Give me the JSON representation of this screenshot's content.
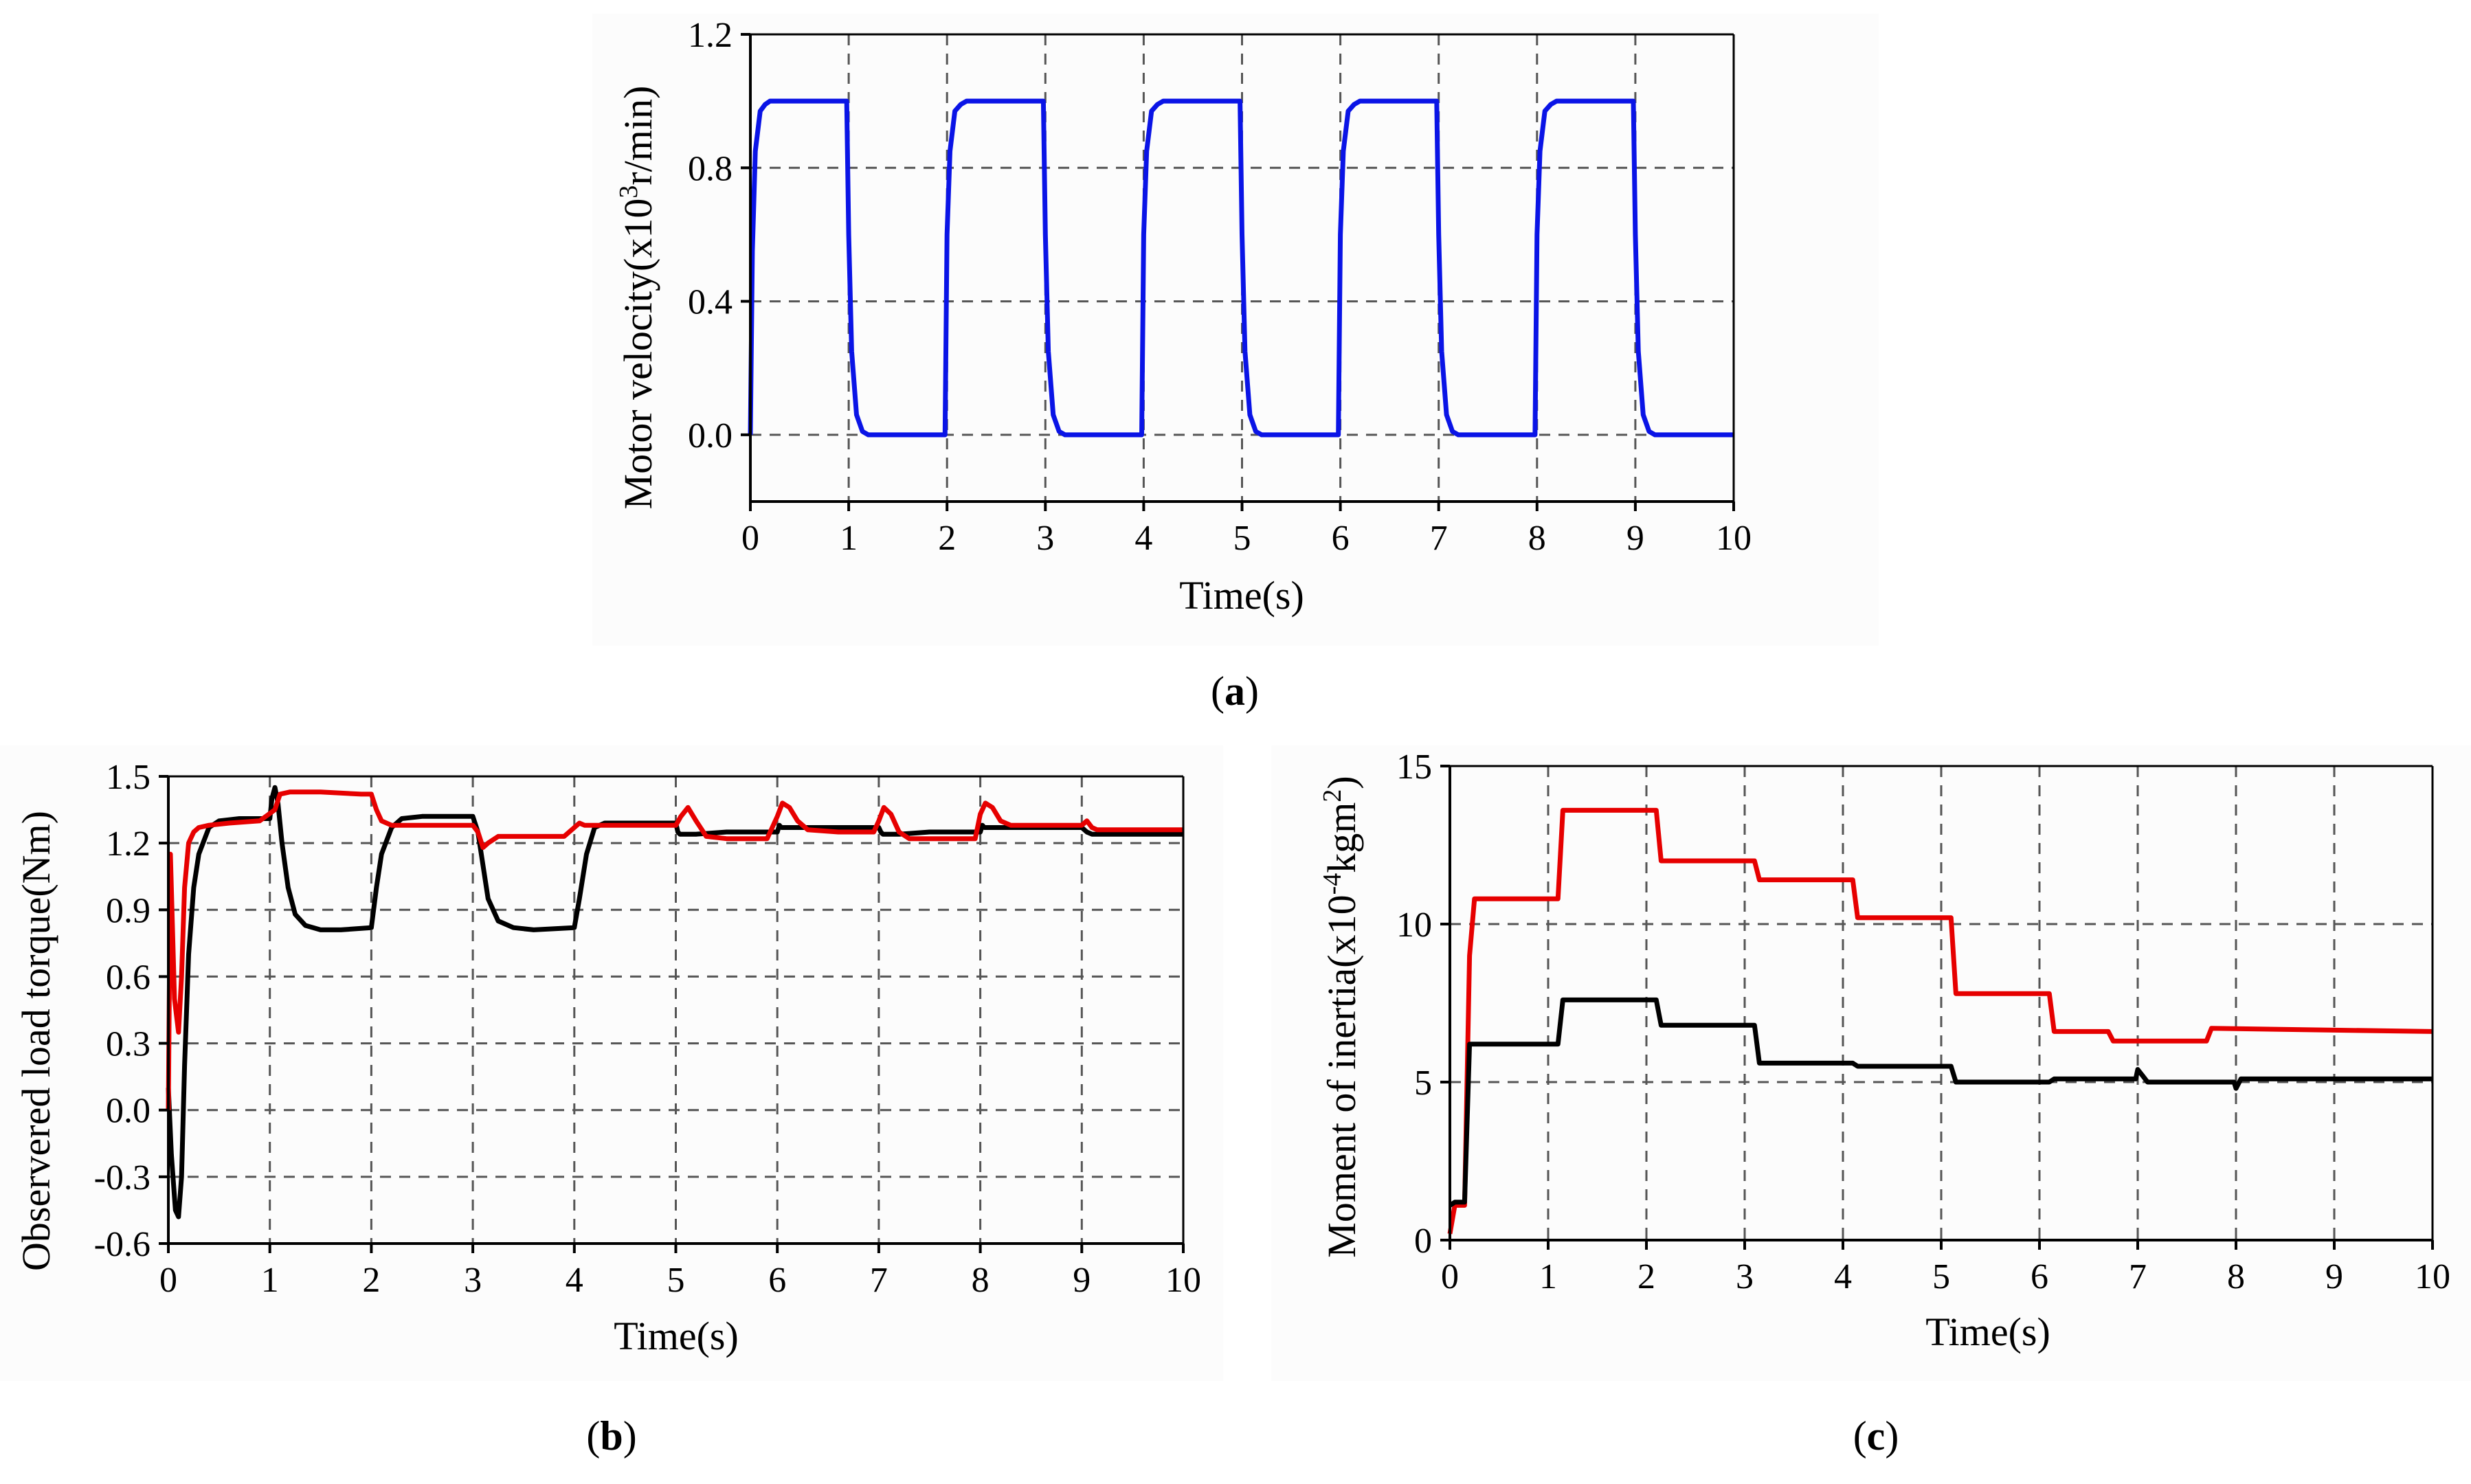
{
  "figure_captions": {
    "a": "a",
    "b": "b",
    "c": "c"
  },
  "chart_data": [
    {
      "id": "a",
      "type": "line",
      "title": "",
      "xlabel": "Time(s)",
      "ylabel_prefix": "Motor velocity(x10",
      "ylabel_sup": "3",
      "ylabel_suffix": "r/min)",
      "xlim": [
        0,
        10
      ],
      "ylim": [
        -0.2,
        1.2
      ],
      "xticks": [
        0,
        1,
        2,
        3,
        4,
        5,
        6,
        7,
        8,
        9,
        10
      ],
      "xtick_labels": [
        "0",
        "1",
        "2",
        "3",
        "4",
        "5",
        "6",
        "7",
        "8",
        "9",
        "10"
      ],
      "yticks": [
        0.0,
        0.4,
        0.8,
        1.2
      ],
      "ytick_labels": [
        "0.0",
        "0.4",
        "0.8",
        "1.2"
      ],
      "grid": true,
      "series": [
        {
          "name": "velocity",
          "color": "#0a14e6",
          "x": [
            0,
            0.02,
            0.05,
            0.1,
            0.15,
            0.2,
            0.98,
            1.0,
            1.03,
            1.08,
            1.14,
            1.2,
            1.98,
            2.0,
            2.03,
            2.08,
            2.14,
            2.2,
            2.98,
            3.0,
            3.03,
            3.08,
            3.14,
            3.2,
            3.98,
            4.0,
            4.03,
            4.08,
            4.14,
            4.2,
            4.98,
            5.0,
            5.03,
            5.08,
            5.14,
            5.2,
            5.98,
            6.0,
            6.03,
            6.08,
            6.14,
            6.2,
            6.98,
            7.0,
            7.03,
            7.08,
            7.14,
            7.2,
            7.98,
            8.0,
            8.03,
            8.08,
            8.14,
            8.2,
            8.98,
            9.0,
            9.03,
            9.08,
            9.14,
            9.2,
            10.0
          ],
          "y": [
            0,
            0.55,
            0.85,
            0.97,
            0.99,
            1.0,
            1.0,
            0.6,
            0.25,
            0.06,
            0.01,
            0,
            0,
            0.6,
            0.85,
            0.97,
            0.99,
            1.0,
            1.0,
            0.6,
            0.25,
            0.06,
            0.01,
            0,
            0,
            0.6,
            0.85,
            0.97,
            0.99,
            1.0,
            1.0,
            0.6,
            0.25,
            0.06,
            0.01,
            0,
            0,
            0.6,
            0.85,
            0.97,
            0.99,
            1.0,
            1.0,
            0.6,
            0.25,
            0.06,
            0.01,
            0,
            0,
            0.6,
            0.85,
            0.97,
            0.99,
            1.0,
            1.0,
            0.6,
            0.25,
            0.06,
            0.01,
            0,
            0
          ]
        }
      ]
    },
    {
      "id": "b",
      "type": "line",
      "title": "",
      "xlabel": "Time(s)",
      "ylabel": "Observered load torque(Nm)",
      "xlim": [
        0,
        10
      ],
      "ylim": [
        -0.6,
        1.5
      ],
      "xticks": [
        0,
        1,
        2,
        3,
        4,
        5,
        6,
        7,
        8,
        9,
        10
      ],
      "xtick_labels": [
        "0",
        "1",
        "2",
        "3",
        "4",
        "5",
        "6",
        "7",
        "8",
        "9",
        "10"
      ],
      "yticks": [
        -0.6,
        -0.3,
        0.0,
        0.3,
        0.6,
        0.9,
        1.2,
        1.5
      ],
      "ytick_labels": [
        "-0.6",
        "-0.3",
        "0.0",
        "0.3",
        "0.6",
        "0.9",
        "1.2",
        "1.5"
      ],
      "grid": true,
      "series": [
        {
          "name": "black",
          "color": "#000000",
          "x": [
            0,
            0.03,
            0.07,
            0.1,
            0.13,
            0.16,
            0.2,
            0.25,
            0.3,
            0.4,
            0.5,
            0.7,
            1.0,
            1.02,
            1.05,
            1.08,
            1.12,
            1.18,
            1.25,
            1.35,
            1.5,
            1.7,
            2.0,
            2.05,
            2.1,
            2.2,
            2.3,
            2.5,
            3.0,
            3.05,
            3.1,
            3.15,
            3.25,
            3.4,
            3.6,
            4.0,
            4.05,
            4.12,
            4.2,
            4.3,
            5.0,
            5.02,
            5.04,
            5.2,
            5.5,
            6.0,
            6.02,
            6.04,
            6.2,
            6.5,
            7.0,
            7.02,
            7.04,
            7.2,
            7.5,
            8.0,
            8.02,
            8.04,
            8.2,
            8.5,
            9.0,
            9.05,
            9.1,
            10.0
          ],
          "y": [
            0.1,
            -0.2,
            -0.45,
            -0.48,
            -0.3,
            0.2,
            0.7,
            1.0,
            1.15,
            1.27,
            1.3,
            1.31,
            1.31,
            1.4,
            1.45,
            1.38,
            1.2,
            1.0,
            0.88,
            0.83,
            0.81,
            0.81,
            0.82,
            1.0,
            1.15,
            1.27,
            1.31,
            1.32,
            1.32,
            1.25,
            1.1,
            0.95,
            0.85,
            0.82,
            0.81,
            0.82,
            0.95,
            1.15,
            1.27,
            1.29,
            1.29,
            1.25,
            1.24,
            1.24,
            1.25,
            1.25,
            1.28,
            1.27,
            1.27,
            1.27,
            1.27,
            1.25,
            1.24,
            1.24,
            1.25,
            1.25,
            1.28,
            1.27,
            1.27,
            1.27,
            1.27,
            1.25,
            1.24,
            1.24
          ]
        },
        {
          "name": "red",
          "color": "#e60000",
          "x": [
            0,
            0.02,
            0.06,
            0.1,
            0.13,
            0.16,
            0.2,
            0.25,
            0.3,
            0.4,
            0.6,
            0.9,
            1.05,
            1.1,
            1.2,
            1.5,
            1.9,
            2.0,
            2.05,
            2.1,
            2.2,
            2.5,
            3.0,
            3.05,
            3.1,
            3.15,
            3.25,
            3.5,
            3.9,
            4.0,
            4.05,
            4.1,
            4.5,
            5.0,
            5.05,
            5.12,
            5.2,
            5.3,
            5.5,
            5.9,
            6.0,
            6.05,
            6.12,
            6.2,
            6.3,
            6.6,
            6.95,
            7.0,
            7.05,
            7.12,
            7.2,
            7.3,
            7.6,
            7.95,
            8.0,
            8.05,
            8.12,
            8.2,
            8.3,
            8.6,
            9.0,
            9.05,
            9.1,
            9.15,
            10.0
          ],
          "y": [
            0.0,
            1.15,
            0.5,
            0.35,
            0.6,
            1.0,
            1.2,
            1.25,
            1.27,
            1.28,
            1.29,
            1.3,
            1.35,
            1.42,
            1.43,
            1.43,
            1.42,
            1.42,
            1.35,
            1.3,
            1.28,
            1.28,
            1.28,
            1.25,
            1.18,
            1.2,
            1.23,
            1.23,
            1.23,
            1.27,
            1.29,
            1.28,
            1.28,
            1.28,
            1.32,
            1.36,
            1.3,
            1.23,
            1.22,
            1.22,
            1.32,
            1.38,
            1.36,
            1.3,
            1.26,
            1.25,
            1.25,
            1.3,
            1.36,
            1.33,
            1.25,
            1.22,
            1.22,
            1.22,
            1.33,
            1.38,
            1.36,
            1.3,
            1.28,
            1.28,
            1.28,
            1.3,
            1.27,
            1.26,
            1.26
          ]
        }
      ]
    },
    {
      "id": "c",
      "type": "line",
      "title": "",
      "xlabel": "Time(s)",
      "ylabel_prefix": "Moment of inertia(x10",
      "ylabel_sup": "-4",
      "ylabel_mid": "kgm",
      "ylabel_sup2": "2",
      "ylabel_suffix": ")",
      "xlim": [
        0,
        10
      ],
      "ylim": [
        0,
        15
      ],
      "xticks": [
        0,
        1,
        2,
        3,
        4,
        5,
        6,
        7,
        8,
        9,
        10
      ],
      "xtick_labels": [
        "0",
        "1",
        "2",
        "3",
        "4",
        "5",
        "6",
        "7",
        "8",
        "9",
        "10"
      ],
      "yticks": [
        0,
        5,
        10,
        15
      ],
      "ytick_labels": [
        "0",
        "5",
        "10",
        "15"
      ],
      "grid": true,
      "series": [
        {
          "name": "red",
          "color": "#e60000",
          "x": [
            0,
            0.05,
            0.15,
            0.2,
            0.25,
            1.1,
            1.15,
            2.1,
            2.15,
            3.1,
            3.15,
            4.1,
            4.15,
            5.1,
            5.15,
            6.1,
            6.15,
            6.7,
            6.75,
            7.7,
            7.75,
            10.0
          ],
          "y": [
            0.2,
            1.1,
            1.1,
            9.0,
            10.8,
            10.8,
            13.6,
            13.6,
            12.0,
            12.0,
            11.4,
            11.4,
            10.2,
            10.2,
            7.8,
            7.8,
            6.6,
            6.6,
            6.3,
            6.3,
            6.7,
            6.6
          ]
        },
        {
          "name": "black",
          "color": "#000000",
          "x": [
            0,
            0.05,
            0.15,
            0.2,
            0.25,
            1.1,
            1.15,
            2.1,
            2.15,
            3.1,
            3.15,
            4.1,
            4.15,
            5.1,
            5.15,
            6.1,
            6.15,
            6.98,
            7.0,
            7.05,
            7.1,
            7.98,
            8.0,
            8.05,
            8.1,
            10.0
          ],
          "y": [
            1.1,
            1.2,
            1.2,
            6.2,
            6.2,
            6.2,
            7.6,
            7.6,
            6.8,
            6.8,
            5.6,
            5.6,
            5.5,
            5.5,
            5.0,
            5.0,
            5.1,
            5.1,
            5.4,
            5.2,
            5.0,
            5.0,
            4.8,
            5.1,
            5.1,
            5.1
          ]
        }
      ]
    }
  ]
}
